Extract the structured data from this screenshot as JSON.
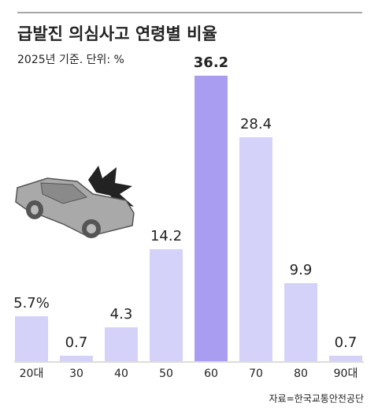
{
  "chart_data": {
    "type": "bar",
    "title": "급발진 의심사고 연령별 비율",
    "subtitle": "2025년 기준. 단위: %",
    "categories": [
      "20대",
      "30",
      "40",
      "50",
      "60",
      "70",
      "80",
      "90대"
    ],
    "values": [
      5.7,
      0.7,
      4.3,
      14.2,
      36.2,
      28.4,
      9.9,
      0.7
    ],
    "value_labels": [
      "5.7%",
      "0.7",
      "4.3",
      "14.2",
      "36.2",
      "28.4",
      "9.9",
      "0.7"
    ],
    "color": "#d5d2fa",
    "highlight_color": "#a99df2",
    "highlight_index": 4,
    "source": "자료=한국교통안전공단"
  }
}
